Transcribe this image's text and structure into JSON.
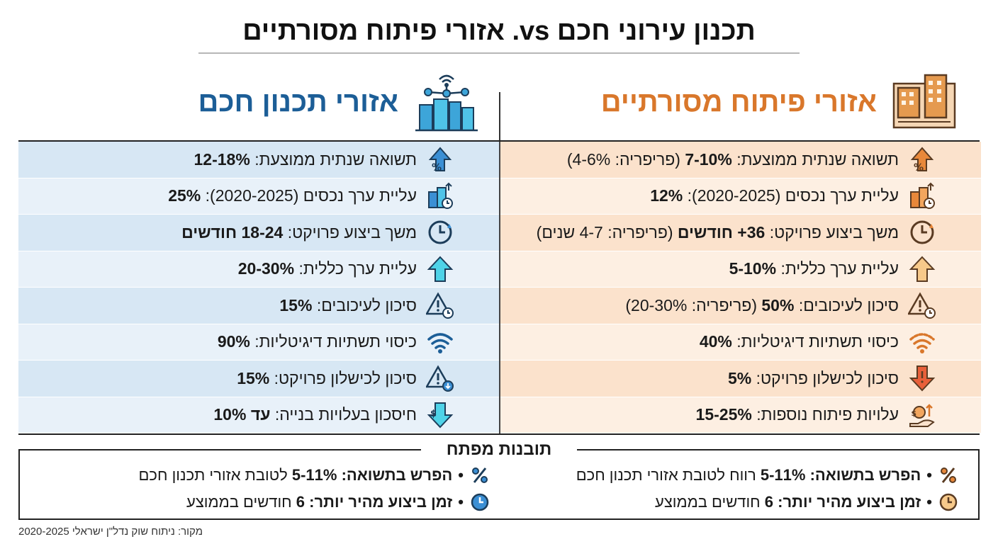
{
  "title": "תכנון עירוני חכם vs. אזורי פיתוח מסורתיים",
  "columns": {
    "traditional": {
      "heading": "אזורי פיתוח מסורתיים",
      "rows": [
        {
          "label": "תשואה שנתית ממוצעת:",
          "bold": "7-10%",
          "suffix": "(פריפריה: 4-6%)",
          "icon": "percent-up-icon"
        },
        {
          "label": "עליית ערך נכסים (2020-2025):",
          "bold": "12%",
          "suffix": "",
          "icon": "building-clock-icon"
        },
        {
          "label": "משך ביצוע פרויקט:",
          "bold": "36+ חודשים",
          "suffix": "(פריפריה: 4-7 שנים)",
          "icon": "clock-refresh-icon"
        },
        {
          "label": "עליית ערך כללית:",
          "bold": "5-10%",
          "suffix": "",
          "icon": "arrow-up-icon"
        },
        {
          "label": "סיכון לעיכובים:",
          "bold": "50%",
          "suffix": "(פריפריה: 20-30%)",
          "icon": "warning-clock-icon"
        },
        {
          "label": "כיסוי תשתיות דיגיטליות:",
          "bold": "40%",
          "suffix": "",
          "icon": "wifi-weak-icon"
        },
        {
          "label": "סיכון לכישלון פרויקט:",
          "bold": "5%",
          "suffix": "",
          "icon": "arrow-down-icon"
        },
        {
          "label": "עלויות פיתוח נוספות:",
          "bold": "15-25%",
          "suffix": "",
          "icon": "money-hand-icon"
        }
      ]
    },
    "smart": {
      "heading": "אזורי תכנון חכם",
      "rows": [
        {
          "label": "תשואה שנתית ממוצעת:",
          "bold": "12-18%",
          "suffix": "",
          "icon": "percent-up-icon"
        },
        {
          "label": "עליית ערך נכסים (2020-2025):",
          "bold": "25%",
          "suffix": "",
          "icon": "building-clock-icon"
        },
        {
          "label": "משך ביצוע פרויקט:",
          "bold": "18-24 חודשים",
          "suffix": "",
          "icon": "clock-refresh-icon"
        },
        {
          "label": "עליית ערך כללית:",
          "bold": "20-30%",
          "suffix": "",
          "icon": "arrow-up-icon"
        },
        {
          "label": "סיכון לעיכובים:",
          "bold": "15%",
          "suffix": "",
          "icon": "warning-clock-icon"
        },
        {
          "label": "כיסוי תשתיות דיגיטליות:",
          "bold": "90%",
          "suffix": "",
          "icon": "wifi-icon"
        },
        {
          "label": "סיכון לכישלון פרויקט:",
          "bold": "15%",
          "suffix": "",
          "icon": "warning-down-icon"
        },
        {
          "label": "חיסכון בעלויות בנייה:",
          "bold": "עד 10%",
          "suffix": "",
          "icon": "dollar-down-icon"
        }
      ]
    }
  },
  "insights": {
    "title": "תובנות מפתח",
    "right": [
      {
        "bold": "הפרש בתשואה:",
        "bold2": "5-11%",
        "rest": "רווח לטובת אזורי תכנון חכם"
      },
      {
        "bold": "זמן ביצוע מהיר יותר:",
        "bold2": "6",
        "rest": "חודשים בממוצע"
      }
    ],
    "left": [
      {
        "bold": "הפרש בתשואה:",
        "bold2": "5-11%",
        "rest": "לטובת אזורי תכנון חכם"
      },
      {
        "bold": "זמן ביצוע מהיר יותר:",
        "bold2": "6",
        "rest": "חודשים בממוצע"
      }
    ]
  },
  "source": "מקור: ניתוח שוק נדל\"ן ישראלי 2020-2025",
  "colors": {
    "traditional_accent": "#d9772b",
    "smart_accent": "#1c5e97",
    "traditional_row": "#fbe2cc",
    "smart_row": "#d7e7f4"
  }
}
